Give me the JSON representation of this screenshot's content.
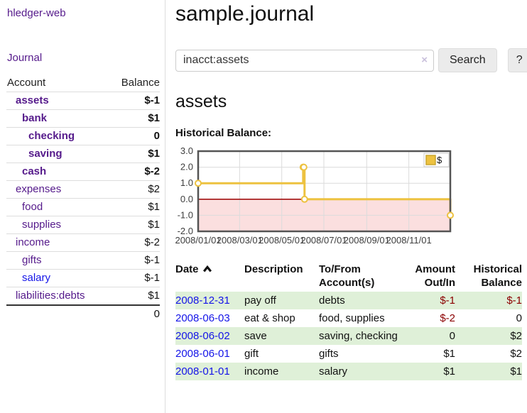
{
  "colors": {
    "purple": "#551A8B",
    "link-blue": "#1414E8",
    "neg-red": "#8B0000",
    "rose": "#C06565",
    "row-green": "#DFF0D8"
  },
  "sidebar": {
    "app_title": "hledger-web",
    "journal_label": "Journal",
    "accounts_header": {
      "account": "Account",
      "balance": "Balance"
    },
    "accounts": [
      {
        "name": "assets",
        "balance": "$-1",
        "indent": 1,
        "bold": true,
        "blue": false
      },
      {
        "name": "bank",
        "balance": "$1",
        "indent": 2,
        "bold": true,
        "blue": false
      },
      {
        "name": "checking",
        "balance": "0",
        "indent": 3,
        "bold": true,
        "blue": false
      },
      {
        "name": "saving",
        "balance": "$1",
        "indent": 3,
        "bold": true,
        "blue": false
      },
      {
        "name": "cash",
        "balance": "$-2",
        "indent": 2,
        "bold": true,
        "blue": false
      },
      {
        "name": "expenses",
        "balance": "$2",
        "indent": 1,
        "bold": false,
        "blue": false
      },
      {
        "name": "food",
        "balance": "$1",
        "indent": 2,
        "bold": false,
        "blue": false
      },
      {
        "name": "supplies",
        "balance": "$1",
        "indent": 2,
        "bold": false,
        "blue": false
      },
      {
        "name": "income",
        "balance": "$-2",
        "indent": 1,
        "bold": false,
        "blue": false
      },
      {
        "name": "gifts",
        "balance": "$-1",
        "indent": 2,
        "bold": false,
        "blue": false
      },
      {
        "name": "salary",
        "balance": "$-1",
        "indent": 2,
        "bold": false,
        "blue": true
      },
      {
        "name": "liabilities:debts",
        "balance": "$1",
        "indent": 1,
        "bold": false,
        "blue": false
      }
    ],
    "total": "0"
  },
  "main": {
    "title": "sample.journal",
    "search": {
      "value": "inacct:assets",
      "clear_icon": "×",
      "button_label": "Search",
      "help_label": "?"
    },
    "account_heading": "assets",
    "chart_label": "Historical Balance:"
  },
  "chart_data": {
    "type": "line",
    "step": true,
    "title": "Historical Balance",
    "series": [
      {
        "name": "$",
        "color": "#EDC240",
        "points": [
          [
            "2008-01-01",
            1
          ],
          [
            "2008-06-01",
            2
          ],
          [
            "2008-06-02",
            2
          ],
          [
            "2008-06-03",
            0
          ],
          [
            "2008-12-31",
            -1
          ]
        ]
      }
    ],
    "xlim": [
      "2008-01-01",
      "2008-12-31"
    ],
    "ylim": [
      -2,
      3
    ],
    "yticks": [
      [
        3,
        "3.0"
      ],
      [
        2,
        "2.0"
      ],
      [
        1,
        "1.0"
      ],
      [
        0,
        "0.0"
      ],
      [
        -1,
        "-1.0"
      ],
      [
        -2,
        "-2.0"
      ]
    ],
    "xticks": [
      [
        "2008-01-01",
        "2008/01/01"
      ],
      [
        "2008-03-01",
        "2008/03/01"
      ],
      [
        "2008-05-01",
        "2008/05/01"
      ],
      [
        "2008-07-01",
        "2008/07/01"
      ],
      [
        "2008-09-01",
        "2008/09/01"
      ],
      [
        "2008-11-01",
        "2008/11/01"
      ]
    ],
    "legend": {
      "label": "$",
      "position": "top-right"
    },
    "negative_region_color": "#FBDFDF",
    "zero_line_color": "#9B0000",
    "grid": true
  },
  "table": {
    "headers": {
      "date": "Date",
      "description": "Description",
      "accounts": "To/From Account(s)",
      "amount": "Amount Out/In",
      "balance": "Historical Balance"
    },
    "rows": [
      {
        "date": "2008-12-31",
        "description": "pay off",
        "accounts": "debts",
        "amount": "$-1",
        "balance": "$-1"
      },
      {
        "date": "2008-06-03",
        "description": "eat & shop",
        "accounts": "food, supplies",
        "amount": "$-2",
        "balance": "0"
      },
      {
        "date": "2008-06-02",
        "description": "save",
        "accounts": "saving, checking",
        "amount": "0",
        "balance": "$2"
      },
      {
        "date": "2008-06-01",
        "description": "gift",
        "accounts": "gifts",
        "amount": "$1",
        "balance": "$2"
      },
      {
        "date": "2008-01-01",
        "description": "income",
        "accounts": "salary",
        "amount": "$1",
        "balance": "$1"
      }
    ]
  }
}
